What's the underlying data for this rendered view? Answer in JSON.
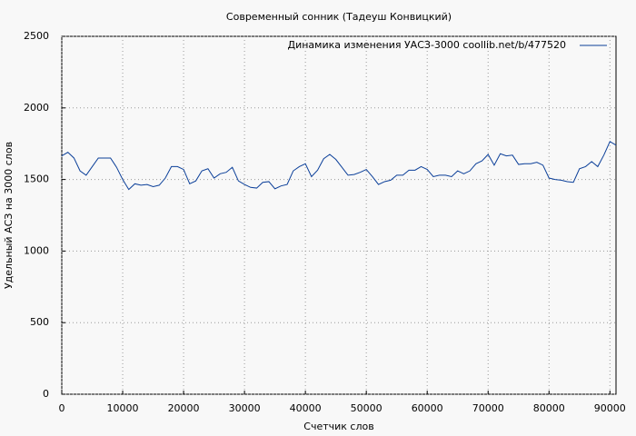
{
  "chart_data": {
    "type": "line",
    "title": "Современный сонник (Тадеуш Конвицкий)",
    "x_label": "Счетчик слов",
    "y_label": "Удельный АСЗ на 3000 слов",
    "x": [
      0,
      1000,
      2000,
      3000,
      4000,
      5000,
      6000,
      7000,
      8000,
      9000,
      10000,
      11000,
      12000,
      13000,
      14000,
      15000,
      16000,
      17000,
      18000,
      19000,
      20000,
      21000,
      22000,
      23000,
      24000,
      25000,
      26000,
      27000,
      28000,
      29000,
      30000,
      31000,
      32000,
      33000,
      34000,
      35000,
      36000,
      37000,
      38000,
      39000,
      40000,
      41000,
      42000,
      43000,
      44000,
      45000,
      46000,
      47000,
      48000,
      49000,
      50000,
      51000,
      52000,
      53000,
      54000,
      55000,
      56000,
      57000,
      58000,
      59000,
      60000,
      61000,
      62000,
      63000,
      64000,
      65000,
      66000,
      67000,
      68000,
      69000,
      70000,
      71000,
      72000,
      73000,
      74000,
      75000,
      76000,
      77000,
      78000,
      79000,
      80000,
      81000,
      82000,
      83000,
      84000,
      85000,
      86000,
      87000,
      88000,
      89000,
      90000,
      91000
    ],
    "series": [
      {
        "name": "Динамика изменения УАСЗ-3000  coollib.net/b/477520",
        "color": "#0b3f99",
        "values": [
          1665,
          1690,
          1650,
          1560,
          1530,
          1590,
          1650,
          1650,
          1650,
          1585,
          1500,
          1430,
          1470,
          1460,
          1465,
          1450,
          1460,
          1510,
          1590,
          1590,
          1570,
          1470,
          1490,
          1560,
          1575,
          1510,
          1540,
          1550,
          1585,
          1490,
          1465,
          1445,
          1440,
          1480,
          1485,
          1435,
          1455,
          1465,
          1560,
          1590,
          1610,
          1520,
          1565,
          1645,
          1675,
          1640,
          1585,
          1530,
          1535,
          1550,
          1570,
          1520,
          1465,
          1485,
          1495,
          1530,
          1530,
          1565,
          1565,
          1590,
          1570,
          1520,
          1530,
          1530,
          1520,
          1560,
          1540,
          1560,
          1610,
          1630,
          1675,
          1600,
          1680,
          1665,
          1670,
          1605,
          1610,
          1610,
          1620,
          1600,
          1510,
          1500,
          1495,
          1485,
          1480,
          1575,
          1590,
          1625,
          1590,
          1670,
          1765,
          1740
        ]
      }
    ],
    "xlim": [
      0,
      91000
    ],
    "ylim": [
      0,
      2500
    ],
    "xticks": [
      0,
      10000,
      20000,
      30000,
      40000,
      50000,
      60000,
      70000,
      80000,
      90000
    ],
    "yticks": [
      0,
      500,
      1000,
      1500,
      2000,
      2500
    ],
    "grid": true,
    "legend": "top-right"
  }
}
